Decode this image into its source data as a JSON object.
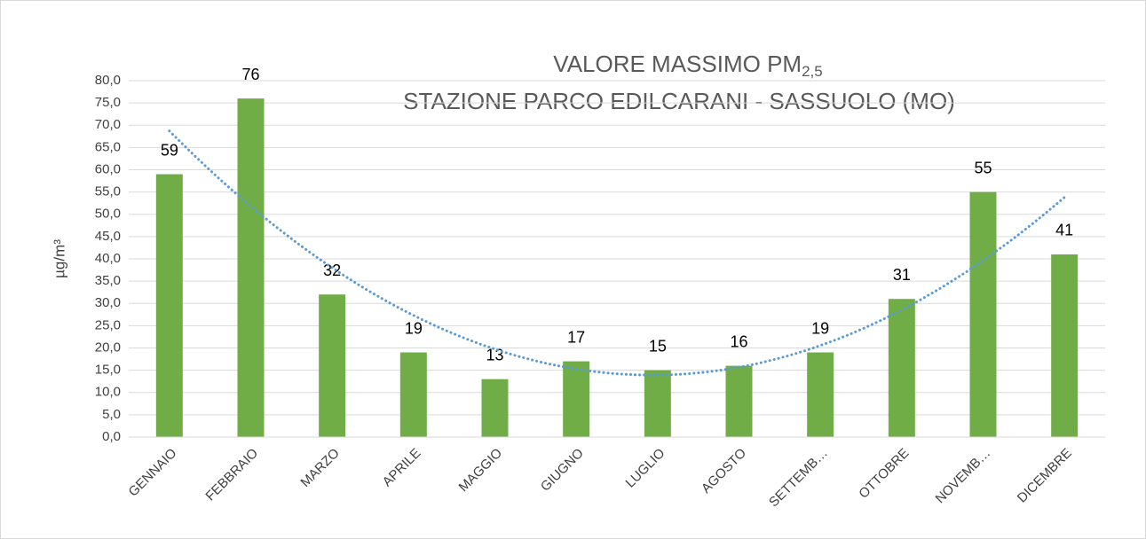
{
  "chart_data": {
    "type": "bar",
    "title": "VALORE MASSIMO PM",
    "title_subscript": "2,5",
    "subtitle": "STAZIONE PARCO EDILCARANI - SASSUOLO (MO)",
    "y_label": "µg/m³",
    "categories": [
      "GENNAIO",
      "FEBBRAIO",
      "MARZO",
      "APRILE",
      "MAGGIO",
      "GIUGNO",
      "LUGLIO",
      "AGOSTO",
      "SETTEMB…",
      "OTTOBRE",
      "NOVEMB…",
      "DICEMBRE"
    ],
    "values": [
      59,
      76,
      32,
      19,
      13,
      17,
      15,
      16,
      19,
      31,
      55,
      41
    ],
    "color": "#70ad47",
    "trendline": {
      "kind": "polynomial",
      "order": 2,
      "color": "#5b9bd5"
    },
    "ylim": [
      0,
      80
    ],
    "yticks": [
      {
        "value": 0,
        "label": "0,0"
      },
      {
        "value": 5,
        "label": "5,0"
      },
      {
        "value": 10,
        "label": "10,0"
      },
      {
        "value": 15,
        "label": "15,0"
      },
      {
        "value": 20,
        "label": "20,0"
      },
      {
        "value": 25,
        "label": "25,0"
      },
      {
        "value": 30,
        "label": "30,0"
      },
      {
        "value": 35,
        "label": "35,0"
      },
      {
        "value": 40,
        "label": "40,0"
      },
      {
        "value": 45,
        "label": "45,0"
      },
      {
        "value": 50,
        "label": "50,0"
      },
      {
        "value": 55,
        "label": "55,0"
      },
      {
        "value": 60,
        "label": "60,0"
      },
      {
        "value": 65,
        "label": "65,0"
      },
      {
        "value": 70,
        "label": "70,0"
      },
      {
        "value": 75,
        "label": "75,0"
      },
      {
        "value": 80,
        "label": "80,0"
      }
    ],
    "grid": true
  }
}
